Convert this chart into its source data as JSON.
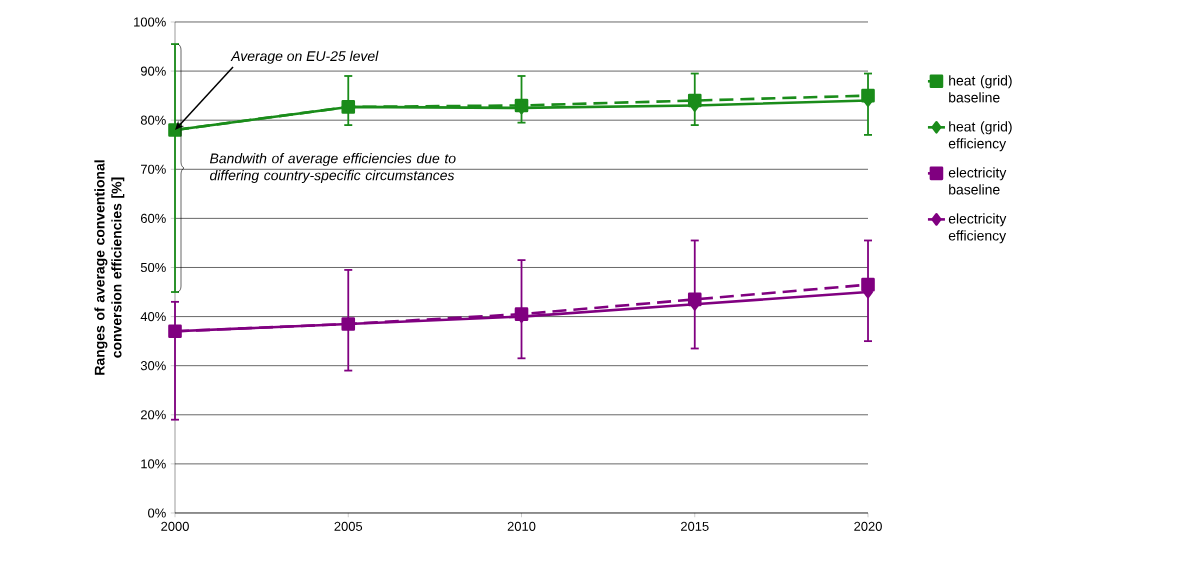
{
  "chart_data": {
    "type": "line",
    "ylabel": "Ranges of average conventional conversion efficiencies [%]",
    "x": [
      2000,
      2005,
      2010,
      2015,
      2020
    ],
    "xlim": [
      2000,
      2020
    ],
    "xticks": [
      2000,
      2005,
      2010,
      2015,
      2020
    ],
    "ylim": [
      0,
      100
    ],
    "yticks": [
      {
        "value": 0,
        "label": "0%"
      },
      {
        "value": 10,
        "label": "10%"
      },
      {
        "value": 20,
        "label": "20%"
      },
      {
        "value": 30,
        "label": "30%"
      },
      {
        "value": 40,
        "label": "40%"
      },
      {
        "value": 50,
        "label": "50%"
      },
      {
        "value": 60,
        "label": "60%"
      },
      {
        "value": 70,
        "label": "70%"
      },
      {
        "value": 80,
        "label": "80%"
      },
      {
        "value": 90,
        "label": "90%"
      },
      {
        "value": 100,
        "label": "100%"
      }
    ],
    "grid": "y",
    "legend": "right",
    "series": [
      {
        "name": "heat (grid) baseline",
        "color": "#1a8c1a",
        "marker": "square",
        "line_style": "dashed",
        "values": [
          78,
          82.7,
          83,
          84,
          85
        ]
      },
      {
        "name": "heat (grid) efficiency",
        "color": "#1a8c1a",
        "marker": "diamond",
        "line_style": "solid",
        "values": [
          78,
          82.7,
          82.5,
          83,
          84
        ],
        "errors": [
          [
            45,
            95.5
          ],
          [
            79,
            89
          ],
          [
            79.5,
            89
          ],
          [
            79,
            89.5
          ],
          [
            77,
            89.5
          ]
        ]
      },
      {
        "name": "electricity baseline",
        "color": "#800080",
        "marker": "square",
        "line_style": "dashed",
        "values": [
          37,
          38.5,
          40.5,
          43.5,
          46.5
        ]
      },
      {
        "name": "electricity efficiency",
        "color": "#800080",
        "marker": "diamond",
        "line_style": "solid",
        "values": [
          37,
          38.5,
          40,
          42.5,
          45
        ],
        "errors": [
          [
            19,
            43
          ],
          [
            29,
            49.5
          ],
          [
            31.5,
            51.5
          ],
          [
            33.5,
            55.5
          ],
          [
            35,
            55.5
          ]
        ]
      }
    ],
    "annotations": [
      {
        "text": "Average on EU-25 level",
        "x": 2000,
        "y": 78
      },
      "Bandwith of average efficiencies due to differing country-specific circumstances"
    ]
  }
}
